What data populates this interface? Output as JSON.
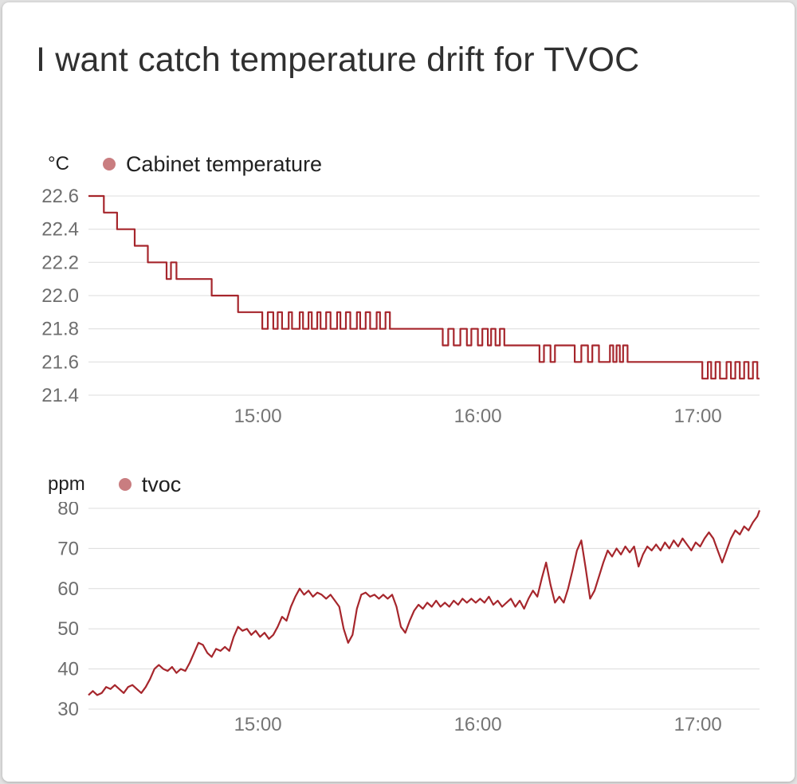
{
  "title": "I want catch temperature drift for TVOC",
  "colors": {
    "line": "#a6262c",
    "legend_dot": "#c97d80",
    "grid": "#dcdcdc",
    "tick_label": "#757575",
    "text": "#212121",
    "card_bg": "#ffffff",
    "page_bg": "#e2e2e2"
  },
  "chart_data": [
    {
      "type": "line",
      "interpolation": "step-after",
      "series_name": "Cabinet temperature",
      "unit": "°C",
      "ylabel": "°C",
      "color": "#a6262c",
      "legend_dot_color": "#c97d80",
      "grid": true,
      "legend_position": "top-left",
      "xlim": [
        14.23,
        17.28
      ],
      "ylim": [
        21.4,
        22.6
      ],
      "yticks": [
        {
          "v": 22.6,
          "label": "22.6"
        },
        {
          "v": 22.4,
          "label": "22.4"
        },
        {
          "v": 22.2,
          "label": "22.2"
        },
        {
          "v": 22.0,
          "label": "22.0"
        },
        {
          "v": 21.8,
          "label": "21.8"
        },
        {
          "v": 21.6,
          "label": "21.6"
        },
        {
          "v": 21.4,
          "label": "21.4"
        }
      ],
      "xticks": [
        {
          "v": 15,
          "label": "15:00"
        },
        {
          "v": 16,
          "label": "16:00"
        },
        {
          "v": 17,
          "label": "17:00"
        }
      ],
      "points": [
        [
          14.23,
          22.6
        ],
        [
          14.3,
          22.5
        ],
        [
          14.36,
          22.4
        ],
        [
          14.44,
          22.3
        ],
        [
          14.5,
          22.2
        ],
        [
          14.585,
          22.1
        ],
        [
          14.605,
          22.2
        ],
        [
          14.63,
          22.1
        ],
        [
          14.79,
          22.0
        ],
        [
          14.91,
          21.9
        ],
        [
          15.02,
          21.8
        ],
        [
          15.045,
          21.9
        ],
        [
          15.07,
          21.8
        ],
        [
          15.09,
          21.9
        ],
        [
          15.11,
          21.8
        ],
        [
          15.14,
          21.9
        ],
        [
          15.155,
          21.8
        ],
        [
          15.19,
          21.9
        ],
        [
          15.205,
          21.8
        ],
        [
          15.23,
          21.9
        ],
        [
          15.245,
          21.8
        ],
        [
          15.27,
          21.9
        ],
        [
          15.285,
          21.8
        ],
        [
          15.31,
          21.9
        ],
        [
          15.33,
          21.8
        ],
        [
          15.36,
          21.9
        ],
        [
          15.375,
          21.8
        ],
        [
          15.4,
          21.9
        ],
        [
          15.42,
          21.8
        ],
        [
          15.45,
          21.9
        ],
        [
          15.465,
          21.8
        ],
        [
          15.49,
          21.9
        ],
        [
          15.51,
          21.8
        ],
        [
          15.54,
          21.9
        ],
        [
          15.555,
          21.8
        ],
        [
          15.58,
          21.9
        ],
        [
          15.6,
          21.8
        ],
        [
          15.84,
          21.7
        ],
        [
          15.865,
          21.8
        ],
        [
          15.89,
          21.7
        ],
        [
          15.92,
          21.8
        ],
        [
          15.95,
          21.7
        ],
        [
          15.97,
          21.8
        ],
        [
          16.0,
          21.7
        ],
        [
          16.02,
          21.8
        ],
        [
          16.045,
          21.7
        ],
        [
          16.06,
          21.8
        ],
        [
          16.08,
          21.7
        ],
        [
          16.1,
          21.8
        ],
        [
          16.12,
          21.7
        ],
        [
          16.28,
          21.6
        ],
        [
          16.3,
          21.7
        ],
        [
          16.33,
          21.6
        ],
        [
          16.35,
          21.7
        ],
        [
          16.44,
          21.6
        ],
        [
          16.47,
          21.7
        ],
        [
          16.5,
          21.6
        ],
        [
          16.52,
          21.7
        ],
        [
          16.55,
          21.6
        ],
        [
          16.6,
          21.7
        ],
        [
          16.615,
          21.6
        ],
        [
          16.63,
          21.7
        ],
        [
          16.645,
          21.6
        ],
        [
          16.66,
          21.7
        ],
        [
          16.68,
          21.6
        ],
        [
          17.02,
          21.5
        ],
        [
          17.045,
          21.6
        ],
        [
          17.06,
          21.5
        ],
        [
          17.08,
          21.6
        ],
        [
          17.1,
          21.5
        ],
        [
          17.13,
          21.6
        ],
        [
          17.15,
          21.5
        ],
        [
          17.17,
          21.6
        ],
        [
          17.19,
          21.5
        ],
        [
          17.21,
          21.6
        ],
        [
          17.23,
          21.5
        ],
        [
          17.25,
          21.6
        ],
        [
          17.27,
          21.5
        ],
        [
          17.28,
          21.5
        ]
      ]
    },
    {
      "type": "line",
      "interpolation": "linear",
      "series_name": "tvoc",
      "unit": "ppm",
      "ylabel": "ppm",
      "color": "#a6262c",
      "legend_dot_color": "#c97d80",
      "grid": true,
      "legend_position": "top-left",
      "xlim": [
        14.23,
        17.28
      ],
      "ylim": [
        30,
        80
      ],
      "yticks": [
        {
          "v": 80,
          "label": "80"
        },
        {
          "v": 70,
          "label": "70"
        },
        {
          "v": 60,
          "label": "60"
        },
        {
          "v": 50,
          "label": "50"
        },
        {
          "v": 40,
          "label": "40"
        },
        {
          "v": 30,
          "label": "30"
        }
      ],
      "xticks": [
        {
          "v": 15,
          "label": "15:00"
        },
        {
          "v": 16,
          "label": "16:00"
        },
        {
          "v": 17,
          "label": "17:00"
        }
      ],
      "points": [
        [
          14.23,
          33.5
        ],
        [
          14.25,
          34.5
        ],
        [
          14.27,
          33.5
        ],
        [
          14.29,
          34
        ],
        [
          14.31,
          35.5
        ],
        [
          14.33,
          35
        ],
        [
          14.35,
          36
        ],
        [
          14.37,
          35
        ],
        [
          14.39,
          34
        ],
        [
          14.41,
          35.5
        ],
        [
          14.43,
          36
        ],
        [
          14.45,
          35
        ],
        [
          14.47,
          34
        ],
        [
          14.49,
          35.5
        ],
        [
          14.51,
          37.5
        ],
        [
          14.53,
          40
        ],
        [
          14.55,
          41
        ],
        [
          14.57,
          40
        ],
        [
          14.59,
          39.5
        ],
        [
          14.61,
          40.5
        ],
        [
          14.63,
          39
        ],
        [
          14.65,
          40
        ],
        [
          14.67,
          39.5
        ],
        [
          14.69,
          41.5
        ],
        [
          14.71,
          44
        ],
        [
          14.73,
          46.5
        ],
        [
          14.75,
          46
        ],
        [
          14.77,
          44
        ],
        [
          14.79,
          43
        ],
        [
          14.81,
          45
        ],
        [
          14.83,
          44.5
        ],
        [
          14.85,
          45.5
        ],
        [
          14.87,
          44.5
        ],
        [
          14.89,
          48
        ],
        [
          14.91,
          50.5
        ],
        [
          14.93,
          49.5
        ],
        [
          14.95,
          50
        ],
        [
          14.97,
          48.5
        ],
        [
          14.99,
          49.5
        ],
        [
          15.01,
          48
        ],
        [
          15.03,
          49
        ],
        [
          15.05,
          47.5
        ],
        [
          15.07,
          48.5
        ],
        [
          15.09,
          50.5
        ],
        [
          15.11,
          53
        ],
        [
          15.13,
          52
        ],
        [
          15.15,
          55.5
        ],
        [
          15.17,
          58
        ],
        [
          15.19,
          60
        ],
        [
          15.21,
          58.5
        ],
        [
          15.23,
          59.5
        ],
        [
          15.25,
          58
        ],
        [
          15.27,
          59
        ],
        [
          15.29,
          58.5
        ],
        [
          15.31,
          57.5
        ],
        [
          15.33,
          58.5
        ],
        [
          15.35,
          57
        ],
        [
          15.37,
          55.5
        ],
        [
          15.39,
          50
        ],
        [
          15.41,
          46.5
        ],
        [
          15.43,
          48.5
        ],
        [
          15.45,
          55
        ],
        [
          15.47,
          58.5
        ],
        [
          15.49,
          59
        ],
        [
          15.51,
          58
        ],
        [
          15.53,
          58.5
        ],
        [
          15.55,
          57.5
        ],
        [
          15.57,
          58.5
        ],
        [
          15.59,
          57.5
        ],
        [
          15.61,
          58.5
        ],
        [
          15.63,
          55.5
        ],
        [
          15.65,
          50.5
        ],
        [
          15.67,
          49
        ],
        [
          15.69,
          52
        ],
        [
          15.71,
          54.5
        ],
        [
          15.73,
          56
        ],
        [
          15.75,
          55
        ],
        [
          15.77,
          56.5
        ],
        [
          15.79,
          55.5
        ],
        [
          15.81,
          57
        ],
        [
          15.83,
          55.5
        ],
        [
          15.85,
          56.5
        ],
        [
          15.87,
          55.5
        ],
        [
          15.89,
          57
        ],
        [
          15.91,
          56
        ],
        [
          15.93,
          57.5
        ],
        [
          15.95,
          56.5
        ],
        [
          15.97,
          57.5
        ],
        [
          15.99,
          56.5
        ],
        [
          16.01,
          57.5
        ],
        [
          16.03,
          56.5
        ],
        [
          16.05,
          58
        ],
        [
          16.07,
          56
        ],
        [
          16.09,
          57
        ],
        [
          16.11,
          55.5
        ],
        [
          16.13,
          56.5
        ],
        [
          16.15,
          57.5
        ],
        [
          16.17,
          55.5
        ],
        [
          16.19,
          57
        ],
        [
          16.21,
          55
        ],
        [
          16.23,
          57.5
        ],
        [
          16.25,
          59.5
        ],
        [
          16.27,
          58
        ],
        [
          16.29,
          62.5
        ],
        [
          16.31,
          66.5
        ],
        [
          16.33,
          61
        ],
        [
          16.35,
          56.5
        ],
        [
          16.37,
          58
        ],
        [
          16.39,
          56.5
        ],
        [
          16.41,
          60
        ],
        [
          16.43,
          64.5
        ],
        [
          16.45,
          69.5
        ],
        [
          16.47,
          72
        ],
        [
          16.49,
          65
        ],
        [
          16.51,
          57.5
        ],
        [
          16.53,
          59.5
        ],
        [
          16.55,
          63
        ],
        [
          16.57,
          66.5
        ],
        [
          16.59,
          69.5
        ],
        [
          16.61,
          68
        ],
        [
          16.63,
          70
        ],
        [
          16.65,
          68.5
        ],
        [
          16.67,
          70.5
        ],
        [
          16.69,
          69
        ],
        [
          16.71,
          70.5
        ],
        [
          16.73,
          65.5
        ],
        [
          16.75,
          68.5
        ],
        [
          16.77,
          70.5
        ],
        [
          16.79,
          69.5
        ],
        [
          16.81,
          71
        ],
        [
          16.83,
          69.5
        ],
        [
          16.85,
          71.5
        ],
        [
          16.87,
          70
        ],
        [
          16.89,
          72
        ],
        [
          16.91,
          70.5
        ],
        [
          16.93,
          72.5
        ],
        [
          16.95,
          71
        ],
        [
          16.97,
          69.5
        ],
        [
          16.99,
          71.5
        ],
        [
          17.01,
          70.5
        ],
        [
          17.03,
          72.5
        ],
        [
          17.05,
          74
        ],
        [
          17.07,
          72.5
        ],
        [
          17.09,
          69.5
        ],
        [
          17.11,
          66.5
        ],
        [
          17.13,
          69.5
        ],
        [
          17.15,
          72.5
        ],
        [
          17.17,
          74.5
        ],
        [
          17.19,
          73.5
        ],
        [
          17.21,
          75.5
        ],
        [
          17.23,
          74.5
        ],
        [
          17.25,
          76.5
        ],
        [
          17.27,
          78
        ],
        [
          17.28,
          79.5
        ]
      ]
    }
  ]
}
